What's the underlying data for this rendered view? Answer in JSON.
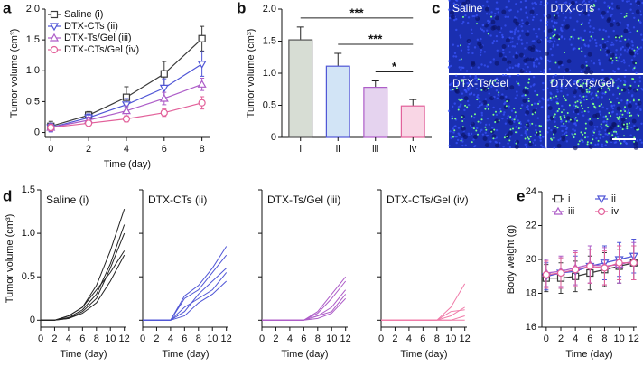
{
  "chart_data": [
    {
      "type": "line",
      "panel": "a",
      "xlabel": "Time (day)",
      "ylabel": "Tumor volume (cm³)",
      "x": [
        0,
        2,
        4,
        6,
        8
      ],
      "xlim": [
        -0.3,
        8.4
      ],
      "xticks": [
        0,
        2,
        4,
        6,
        8
      ],
      "ylim": [
        -0.08,
        2.0
      ],
      "yticks": [
        0,
        0.5,
        {
          "value": 1.0,
          "label": "1.0"
        },
        1.5,
        {
          "value": 2.0,
          "label": "2.0"
        }
      ],
      "legend": "upper left",
      "series": [
        {
          "name": "Saline (i)",
          "color": "#3a3a3a",
          "marker": "square",
          "values": [
            0.1,
            0.28,
            0.57,
            0.95,
            1.52
          ],
          "errors": [
            0.08,
            0.06,
            0.17,
            0.2,
            0.2
          ]
        },
        {
          "name": "DTX-CTs (ii)",
          "color": "#4f55d6",
          "marker": "triangle-down",
          "values": [
            0.08,
            0.24,
            0.45,
            0.72,
            1.11
          ],
          "errors": [
            0.07,
            0.06,
            0.1,
            0.15,
            0.2
          ]
        },
        {
          "name": "DTX-Ts/Gel (iii)",
          "color": "#ad5cc8",
          "marker": "triangle-up",
          "values": [
            0.08,
            0.2,
            0.35,
            0.55,
            0.78
          ],
          "errors": [
            0.06,
            0.05,
            0.08,
            0.1,
            0.1
          ]
        },
        {
          "name": "DTX-CTs/Gel (iv)",
          "color": "#e2609a",
          "marker": "circle",
          "values": [
            0.08,
            0.15,
            0.22,
            0.32,
            0.48
          ],
          "errors": [
            0.05,
            0.04,
            0.05,
            0.06,
            0.1
          ]
        }
      ]
    },
    {
      "type": "bar",
      "panel": "b",
      "ylabel": "Tumor volume (cm³)",
      "categories": [
        "i",
        "ii",
        "iii",
        "iv"
      ],
      "values": [
        1.52,
        1.11,
        0.78,
        0.49
      ],
      "errors": [
        0.2,
        0.2,
        0.1,
        0.1
      ],
      "colors": [
        "#d7ddd4",
        "#d2e4f6",
        "#e5d3ef",
        "#f9d6e5"
      ],
      "edge_colors": [
        "#555555",
        "#4f55d6",
        "#ad5cc8",
        "#e2609a"
      ],
      "ylim": [
        0,
        2.0
      ],
      "yticks": [
        0,
        0.5,
        {
          "value": 1.0,
          "label": "1.0"
        },
        1.5,
        {
          "value": 2.0,
          "label": "2.0"
        }
      ],
      "annotations": [
        {
          "label": "***",
          "from": 0,
          "to": 3
        },
        {
          "label": "***",
          "from": 1,
          "to": 3
        },
        {
          "label": "*",
          "from": 2,
          "to": 3
        }
      ]
    },
    {
      "type": "image",
      "panel": "c",
      "labels": [
        "Saline",
        "DTX-CTs",
        "DTX-Ts/Gel",
        "DTX-CTs/Gel"
      ]
    },
    {
      "type": "line",
      "panel": "d",
      "title": "Saline (i)",
      "xlabel": "Time (day)",
      "ylabel": "Tumor volume (cm³)",
      "color": "#222222",
      "x": [
        0,
        2,
        4,
        6,
        8,
        10,
        12
      ],
      "xlim": [
        0,
        12.3
      ],
      "xticks": [
        0,
        2,
        4,
        6,
        8,
        10,
        12
      ],
      "ylim": [
        -0.08,
        1.5
      ],
      "yticks": [
        0,
        0.5,
        {
          "value": 1.0,
          "label": "1.0"
        },
        1.5
      ],
      "ytick_labels": true,
      "series": [
        {
          "values": [
            0,
            0,
            0.05,
            0.15,
            0.4,
            0.8,
            1.28
          ]
        },
        {
          "values": [
            0,
            0,
            0.03,
            0.12,
            0.3,
            0.65,
            1.1
          ]
        },
        {
          "values": [
            0,
            0,
            0.02,
            0.1,
            0.25,
            0.6,
            1.0
          ]
        },
        {
          "values": [
            0,
            0,
            0.05,
            0.15,
            0.35,
            0.55,
            0.8
          ]
        },
        {
          "values": [
            0,
            0,
            0.02,
            0.08,
            0.2,
            0.45,
            0.75
          ]
        }
      ]
    },
    {
      "type": "line",
      "title": "DTX-CTs (ii)",
      "xlabel": "Time (day)",
      "color": "#4f55d6",
      "x": [
        0,
        2,
        4,
        6,
        8,
        10,
        12
      ],
      "xlim": [
        0,
        12.3
      ],
      "xticks": [
        0,
        2,
        4,
        6,
        8,
        10,
        12
      ],
      "ylim": [
        -0.08,
        1.5
      ],
      "yticks": [
        0,
        0.5,
        1.0,
        1.5
      ],
      "ytick_labels": false,
      "series": [
        {
          "values": [
            0,
            0,
            0,
            0.28,
            0.4,
            0.6,
            0.85
          ]
        },
        {
          "values": [
            0,
            0,
            0,
            0.25,
            0.35,
            0.55,
            0.75
          ]
        },
        {
          "values": [
            0,
            0,
            0,
            0.1,
            0.3,
            0.45,
            0.6
          ]
        },
        {
          "values": [
            0,
            0,
            0,
            0.15,
            0.25,
            0.35,
            0.55
          ]
        },
        {
          "values": [
            0,
            0,
            0,
            0.05,
            0.2,
            0.3,
            0.45
          ]
        }
      ]
    },
    {
      "type": "line",
      "title": "DTX-Ts/Gel (iii)",
      "xlabel": "Time (day)",
      "color": "#ad5cc8",
      "x": [
        0,
        2,
        4,
        6,
        8,
        10,
        12
      ],
      "xlim": [
        0,
        12.3
      ],
      "xticks": [
        0,
        2,
        4,
        6,
        8,
        10,
        12
      ],
      "ylim": [
        -0.08,
        1.5
      ],
      "yticks": [
        0,
        0.5,
        1.0,
        1.5
      ],
      "ytick_labels": false,
      "series": [
        {
          "values": [
            0,
            0,
            0,
            0,
            0.1,
            0.3,
            0.5
          ]
        },
        {
          "values": [
            0,
            0,
            0,
            0,
            0.08,
            0.25,
            0.45
          ]
        },
        {
          "values": [
            0,
            0,
            0,
            0,
            0.05,
            0.15,
            0.35
          ]
        },
        {
          "values": [
            0,
            0,
            0,
            0,
            0.05,
            0.1,
            0.3
          ]
        },
        {
          "values": [
            0,
            0,
            0,
            0,
            0.02,
            0.08,
            0.25
          ]
        }
      ]
    },
    {
      "type": "line",
      "title": "DTX-CTs/Gel (iv)",
      "xlabel": "Time (day)",
      "color": "#f07aa8",
      "x": [
        0,
        2,
        4,
        6,
        8,
        10,
        12
      ],
      "xlim": [
        0,
        12.3
      ],
      "xticks": [
        0,
        2,
        4,
        6,
        8,
        10,
        12
      ],
      "ylim": [
        -0.08,
        1.5
      ],
      "yticks": [
        0,
        0.5,
        1.0,
        1.5
      ],
      "ytick_labels": false,
      "series": [
        {
          "values": [
            0,
            0,
            0,
            0,
            0,
            0.15,
            0.42
          ]
        },
        {
          "values": [
            0,
            0,
            0,
            0,
            0,
            0.05,
            0.15
          ]
        },
        {
          "values": [
            0,
            0,
            0,
            0,
            0,
            0.1,
            0.12
          ]
        },
        {
          "values": [
            0,
            0,
            0,
            0,
            0,
            0,
            0.05
          ]
        },
        {
          "values": [
            0,
            0,
            0,
            0,
            0,
            0,
            0
          ]
        }
      ]
    },
    {
      "type": "line",
      "panel": "e",
      "xlabel": "Time (day)",
      "ylabel": "Body weight (g)",
      "x": [
        0,
        2,
        4,
        6,
        8,
        10,
        12
      ],
      "xlim": [
        -0.6,
        12.4
      ],
      "xticks": [
        0,
        2,
        4,
        6,
        8,
        10,
        12
      ],
      "ylim": [
        16,
        24
      ],
      "yticks": [
        16,
        18,
        20,
        22,
        24
      ],
      "legend": "upper center",
      "series": [
        {
          "name": "i",
          "color": "#3a3a3a",
          "marker": "square",
          "values": [
            18.9,
            18.9,
            19.0,
            19.2,
            19.4,
            19.6,
            19.8
          ],
          "errors": [
            0.8,
            0.9,
            0.9,
            1.0,
            1.0,
            1.0,
            1.0
          ]
        },
        {
          "name": "ii",
          "color": "#4f55d6",
          "marker": "triangle-down",
          "values": [
            19.0,
            19.2,
            19.3,
            19.6,
            19.8,
            20.0,
            20.2
          ],
          "errors": [
            0.8,
            0.9,
            0.9,
            1.0,
            1.0,
            1.0,
            1.0
          ]
        },
        {
          "name": "iii",
          "color": "#ad5cc8",
          "marker": "triangle-up",
          "values": [
            19.2,
            19.3,
            19.5,
            19.7,
            19.6,
            19.7,
            19.9
          ],
          "errors": [
            0.8,
            0.9,
            1.0,
            1.1,
            1.1,
            1.1,
            1.1
          ]
        },
        {
          "name": "iv",
          "color": "#e2609a",
          "marker": "circle",
          "values": [
            19.1,
            19.2,
            19.4,
            19.6,
            19.5,
            19.8,
            19.8
          ],
          "errors": [
            0.8,
            0.9,
            1.0,
            1.0,
            1.0,
            1.0,
            1.0
          ]
        }
      ]
    }
  ]
}
